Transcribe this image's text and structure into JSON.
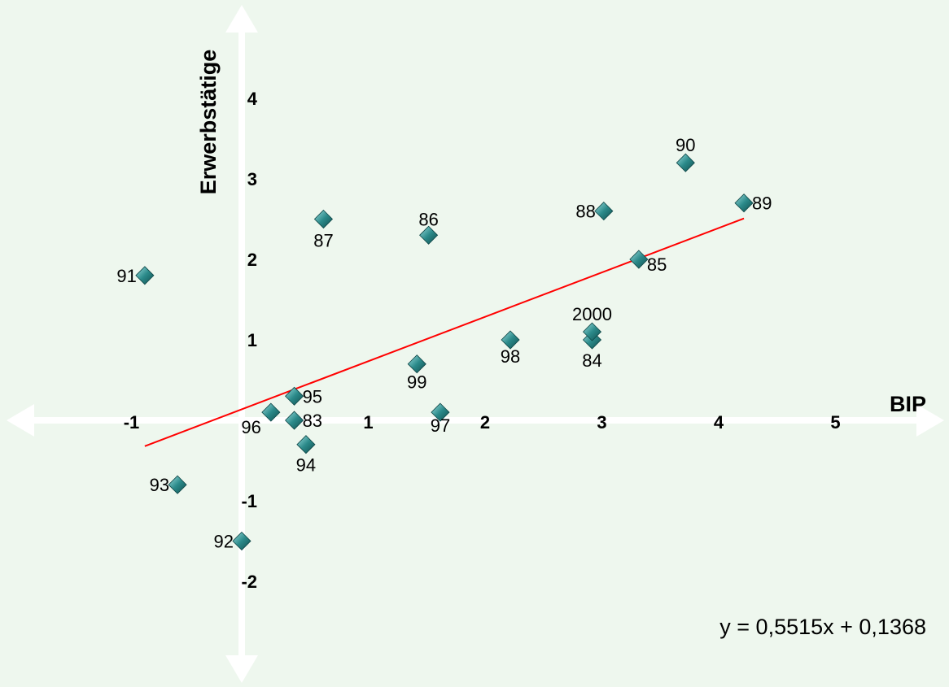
{
  "chart_data": {
    "type": "scatter",
    "title": "",
    "xlabel": "BIP",
    "ylabel": "Erwerbstätige",
    "xlim": [
      -1.05,
      5.9
    ],
    "ylim": [
      -3.2,
      5.1
    ],
    "x_ticks": [
      {
        "value": -1,
        "label": "-1"
      },
      {
        "value": 1,
        "label": "1"
      },
      {
        "value": 2,
        "label": "2"
      },
      {
        "value": 3,
        "label": "3"
      },
      {
        "value": 4,
        "label": "4"
      },
      {
        "value": 5,
        "label": "5"
      }
    ],
    "y_ticks": [
      {
        "value": 4,
        "label": "4"
      },
      {
        "value": 3,
        "label": "3"
      },
      {
        "value": 2,
        "label": "2"
      },
      {
        "value": 1,
        "label": "1"
      },
      {
        "value": -1,
        "label": "-1"
      },
      {
        "value": -2,
        "label": "-2"
      }
    ],
    "grid": false,
    "marker_color": "#2b8a8a",
    "trendline_color": "#ff0000",
    "trendline": {
      "slope": 0.5515,
      "intercept": 0.1368,
      "x_range": [
        -0.83,
        4.3
      ],
      "label": "y = 0,5515x + 0,1368"
    },
    "points": [
      {
        "label": "83",
        "x": 0.45,
        "y": 0.0
      },
      {
        "label": "84",
        "x": 3.0,
        "y": 1.0
      },
      {
        "label": "85",
        "x": 3.4,
        "y": 2.0
      },
      {
        "label": "86",
        "x": 1.6,
        "y": 2.3
      },
      {
        "label": "87",
        "x": 0.7,
        "y": 2.5
      },
      {
        "label": "88",
        "x": 3.1,
        "y": 2.6
      },
      {
        "label": "89",
        "x": 4.3,
        "y": 2.7
      },
      {
        "label": "90",
        "x": 3.8,
        "y": 3.2
      },
      {
        "label": "91",
        "x": -0.83,
        "y": 1.8
      },
      {
        "label": "92",
        "x": 0.0,
        "y": -1.5
      },
      {
        "label": "93",
        "x": -0.55,
        "y": -0.8
      },
      {
        "label": "94",
        "x": 0.55,
        "y": -0.3
      },
      {
        "label": "95",
        "x": 0.45,
        "y": 0.3
      },
      {
        "label": "96",
        "x": 0.25,
        "y": 0.1
      },
      {
        "label": "97",
        "x": 1.7,
        "y": 0.1
      },
      {
        "label": "98",
        "x": 2.3,
        "y": 1.0
      },
      {
        "label": "99",
        "x": 1.5,
        "y": 0.7
      },
      {
        "label": "2000",
        "x": 3.0,
        "y": 1.1
      }
    ]
  }
}
